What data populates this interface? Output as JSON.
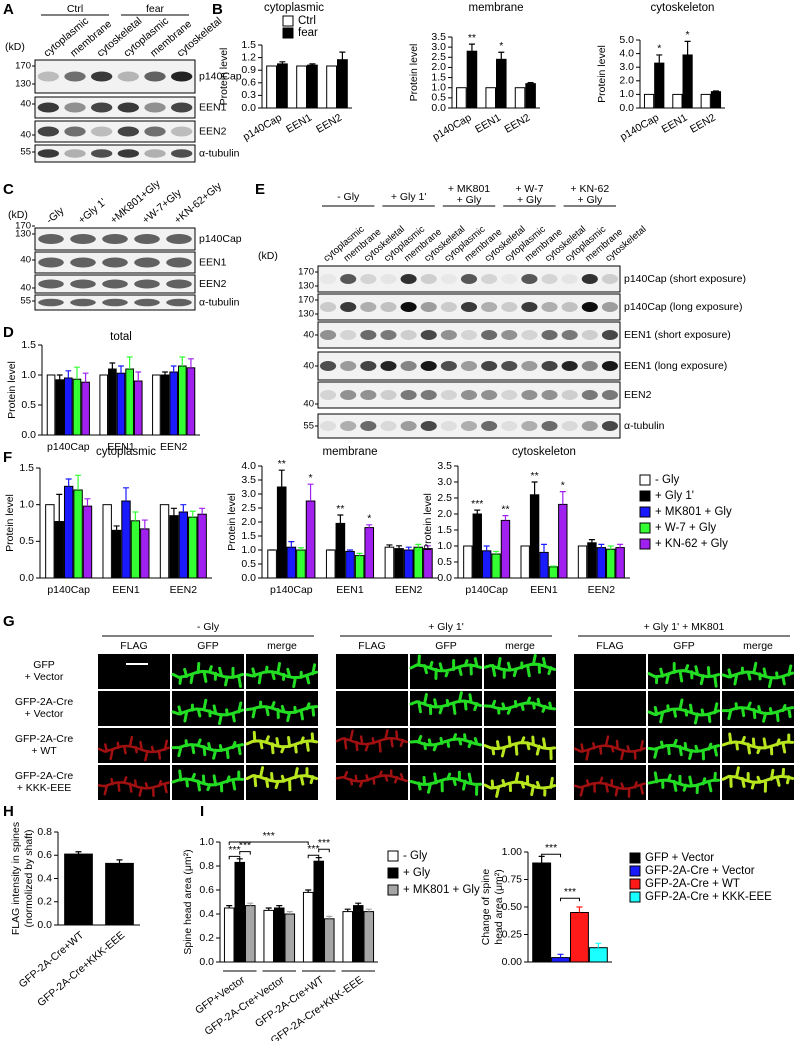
{
  "panel_labels": [
    "A",
    "B",
    "C",
    "D",
    "E",
    "F",
    "G",
    "H",
    "I"
  ],
  "blots": [
    {
      "unit": "(kD)",
      "groups": [
        "Ctrl",
        "fear"
      ],
      "lanes": [
        "cytoplasmic",
        "membrane",
        "cytoskeletal",
        "cytoplasmic",
        "membrane",
        "cytoskeletal"
      ],
      "markers": [
        "170",
        "130",
        "40",
        "40",
        "55"
      ],
      "rows": [
        "p140Cap",
        "EEN1",
        "EEN2",
        "α-tubulin"
      ]
    },
    {
      "unit": "(kD)",
      "lanes": [
        "-Gly",
        "+Gly 1'",
        "+MK801+Gly",
        "+W-7+Gly",
        "+KN-62+Gly"
      ],
      "markers": [
        "170",
        "130",
        "40",
        "40",
        "55"
      ],
      "rows": [
        "p140Cap",
        "EEN1",
        "EEN2",
        "α-tubulin"
      ]
    },
    {
      "unit": "(kD)",
      "groups": [
        [
          "- Gly"
        ],
        [
          "+ Gly 1'"
        ],
        [
          "+ MK801",
          "+ Gly"
        ],
        [
          "+ W-7",
          "+ Gly"
        ],
        [
          "+ KN-62",
          "+ Gly"
        ]
      ],
      "lanes": [
        "cytoplasmic",
        "membrane",
        "cytoskeletal",
        "cytoplasmic",
        "membrane",
        "cytoskeletal",
        "cytoplasmic",
        "membrane",
        "cytoskeletal",
        "cytoplasmic",
        "membrane",
        "cytoskeletal",
        "cytoplasmic",
        "membrane",
        "cytoskeletal"
      ],
      "markers": [
        "170",
        "130",
        "170",
        "130",
        "40",
        "40",
        "40",
        "55"
      ],
      "rows": [
        "p140Cap (short exposure)",
        "p140Cap (long exposure)",
        "EEN1 (short exposure)",
        "EEN1 (long exposure)",
        "EEN2",
        "α-tubulin"
      ]
    }
  ],
  "images": {
    "groups": [
      "- Gly",
      "+ Gly 1'",
      "+ Gly 1' + MK801"
    ],
    "columns": [
      "FLAG",
      "GFP",
      "merge",
      "FLAG",
      "GFP",
      "merge",
      "FLAG",
      "GFP",
      "merge"
    ],
    "rows": [
      [
        "GFP",
        "+ Vector"
      ],
      [
        "GFP-2A-Cre",
        "+ Vector"
      ],
      [
        "GFP-2A-Cre",
        "+ WT"
      ],
      [
        "GFP-2A-Cre",
        "+ KKK-EEE"
      ]
    ]
  },
  "chart_data": [
    {
      "type": "bar",
      "title": "cytoplasmic",
      "ylabel": "Protein level",
      "categories": [
        "p140Cap",
        "EEN1",
        "EEN2"
      ],
      "series": [
        {
          "name": "Ctrl",
          "color": "#ffffff",
          "values": [
            1,
            1,
            1
          ]
        },
        {
          "name": "fear",
          "color": "#000000",
          "values": [
            1.05,
            1.02,
            1.15
          ],
          "errors": [
            0.05,
            0.03,
            0.18
          ]
        }
      ],
      "ylim": [
        0,
        1.5
      ],
      "yticks": [
        {
          "value": 0,
          "label": "0.0"
        },
        0.3,
        0.6,
        0.9,
        1.2,
        1.5
      ]
    },
    {
      "type": "bar",
      "title": "membrane",
      "ylabel": "Protein level",
      "categories": [
        "p140Cap",
        "EEN1",
        "EEN2"
      ],
      "series": [
        {
          "color": "#ffffff",
          "values": [
            1,
            1,
            1
          ]
        },
        {
          "color": "#000000",
          "values": [
            2.8,
            2.4,
            1.2
          ],
          "errors": [
            0.35,
            0.35,
            0.05
          ]
        }
      ],
      "ylim": [
        0,
        3.5
      ],
      "yticks": [
        {
          "value": 0,
          "label": "0.0"
        },
        0.5,
        {
          "value": 1,
          "label": "1.0"
        },
        1.5,
        {
          "value": 2,
          "label": "2.0"
        },
        2.5,
        {
          "value": 3,
          "label": "3.0"
        },
        3.5
      ],
      "annotations": [
        "**",
        "*"
      ]
    },
    {
      "type": "bar",
      "title": "cytoskeleton",
      "ylabel": "Protein level",
      "categories": [
        "p140Cap",
        "EEN1",
        "EEN2"
      ],
      "series": [
        {
          "color": "#ffffff",
          "values": [
            1,
            1,
            1
          ]
        },
        {
          "color": "#000000",
          "values": [
            3.3,
            3.9,
            1.2
          ],
          "errors": [
            0.6,
            1.0,
            0.05
          ]
        }
      ],
      "ylim": [
        0,
        5
      ],
      "yticks": [
        {
          "value": 0,
          "label": "0.0"
        },
        {
          "value": 1,
          "label": "1.0"
        },
        {
          "value": 2,
          "label": "2.0"
        },
        {
          "value": 3,
          "label": "3.0"
        },
        {
          "value": 4,
          "label": "4.0"
        },
        {
          "value": 5,
          "label": "5.0"
        }
      ],
      "annotations": [
        "*",
        "*"
      ]
    },
    {
      "type": "bar",
      "title": "total",
      "ylabel": "Protein level",
      "categories": [
        "p140Cap",
        "EEN1",
        "EEN2"
      ],
      "series": [
        {
          "color": "#ffffff",
          "values": [
            1,
            1,
            1
          ]
        },
        {
          "color": "#000000",
          "values": [
            0.92,
            1.1,
            1.0
          ],
          "errors": [
            0.08,
            0.1,
            0.05
          ]
        },
        {
          "color": "#1a1aff",
          "values": [
            0.95,
            1.03,
            1.05
          ],
          "errors": [
            0.12,
            0.12,
            0.1
          ]
        },
        {
          "color": "#33ff33",
          "values": [
            0.93,
            1.1,
            1.15
          ],
          "errors": [
            0.2,
            0.2,
            0.15
          ]
        },
        {
          "color": "#a020f0",
          "values": [
            0.88,
            0.9,
            1.12
          ],
          "errors": [
            0.15,
            0.15,
            0.15
          ]
        }
      ],
      "ylim": [
        0,
        1.5
      ],
      "yticks": [
        {
          "value": 0,
          "label": "0.0"
        },
        0.5,
        {
          "value": 1,
          "label": "1.0"
        },
        1.5
      ]
    },
    {
      "type": "bar",
      "title": "cytoplasmic",
      "ylabel": "Protein level",
      "categories": [
        "p140Cap",
        "EEN1",
        "EEN2"
      ],
      "series": [
        {
          "color": "#ffffff",
          "values": [
            1,
            1,
            1
          ]
        },
        {
          "color": "#000000",
          "values": [
            0.77,
            0.65,
            0.85
          ],
          "errors": [
            0.37,
            0.06,
            0.1
          ]
        },
        {
          "color": "#1a1aff",
          "values": [
            1.25,
            1.05,
            0.9
          ],
          "errors": [
            0.1,
            0.18,
            0.1
          ]
        },
        {
          "color": "#33ff33",
          "values": [
            1.2,
            0.78,
            0.83
          ],
          "errors": [
            0.2,
            0.12,
            0.08
          ]
        },
        {
          "color": "#a020f0",
          "values": [
            0.98,
            0.67,
            0.87
          ],
          "errors": [
            0.1,
            0.12,
            0.08
          ]
        }
      ],
      "ylim": [
        0,
        1.5
      ],
      "yticks": [
        {
          "value": 0,
          "label": "0.0"
        },
        0.5,
        {
          "value": 1,
          "label": "1.0"
        },
        1.5
      ]
    },
    {
      "type": "bar",
      "title": "membrane",
      "ylabel": "Protein level",
      "categories": [
        "p140Cap",
        "EEN1",
        "EEN2"
      ],
      "series": [
        {
          "color": "#ffffff",
          "values": [
            1,
            1,
            1.1
          ],
          "errors": [
            0,
            0,
            0.08
          ]
        },
        {
          "color": "#000000",
          "values": [
            3.25,
            1.95,
            1.05
          ],
          "errors": [
            0.6,
            0.3,
            0.1
          ]
        },
        {
          "color": "#1a1aff",
          "values": [
            1.1,
            0.95,
            1.0
          ],
          "errors": [
            0.2,
            0.05,
            0.1
          ]
        },
        {
          "color": "#33ff33",
          "values": [
            1.0,
            0.8,
            1.1
          ],
          "errors": [
            0.08,
            0.08,
            0.1
          ]
        },
        {
          "color": "#a020f0",
          "values": [
            2.75,
            1.8,
            1.05
          ],
          "errors": [
            0.6,
            0.1,
            0.1
          ]
        }
      ],
      "ylim": [
        0,
        4
      ],
      "yticks": [
        {
          "value": 0,
          "label": "0.0"
        },
        0.5,
        {
          "value": 1,
          "label": "1.0"
        },
        1.5,
        {
          "value": 2,
          "label": "2.0"
        },
        2.5,
        {
          "value": 3,
          "label": "3.0"
        },
        3.5,
        {
          "value": 4,
          "label": "4.0"
        }
      ],
      "annotations": [
        "**",
        "*",
        "**",
        "*"
      ]
    },
    {
      "type": "bar",
      "title": "cytoskeleton",
      "ylabel": "Protein level",
      "categories": [
        "p140Cap",
        "EEN1",
        "EEN2"
      ],
      "series": [
        {
          "name": "- Gly",
          "color": "#ffffff",
          "values": [
            1,
            1,
            1
          ]
        },
        {
          "name": "+ Gly 1'",
          "color": "#000000",
          "values": [
            2.0,
            2.6,
            1.1
          ],
          "errors": [
            0.12,
            0.4,
            0.1
          ]
        },
        {
          "name": "+ MK801 + Gly",
          "color": "#1a1aff",
          "values": [
            0.85,
            0.8,
            0.95
          ],
          "errors": [
            0.15,
            0.25,
            0.1
          ]
        },
        {
          "name": "+ W-7 + Gly",
          "color": "#33ff33",
          "values": [
            0.75,
            0.35,
            0.9
          ],
          "errors": [
            0.08,
            0.02,
            0.1
          ]
        },
        {
          "name": "+ KN-62 + Gly",
          "color": "#a020f0",
          "values": [
            1.8,
            2.3,
            0.95
          ],
          "errors": [
            0.15,
            0.4,
            0.1
          ]
        }
      ],
      "ylim": [
        0,
        3.5
      ],
      "yticks": [
        {
          "value": 0,
          "label": "0.0"
        },
        0.5,
        {
          "value": 1,
          "label": "1.0"
        },
        1.5,
        {
          "value": 2,
          "label": "2.0"
        },
        2.5,
        {
          "value": 3,
          "label": "3.0"
        },
        3.5
      ],
      "annotations": [
        "***",
        "**",
        "**",
        "*"
      ]
    },
    {
      "type": "bar",
      "ylabel": [
        "FLAG intensity in spines",
        "(normolized by shaft)"
      ],
      "categories": [
        "GFP-2A-Cre+WT",
        "GFP-2A-Cre+KKK-EEE"
      ],
      "series": [
        {
          "color": "#000000",
          "values": [
            0.61,
            0.53
          ],
          "errors": [
            0.02,
            0.03
          ]
        }
      ],
      "ylim": [
        0,
        0.8
      ],
      "yticks": [
        {
          "value": 0,
          "label": "0.0"
        },
        0.2,
        0.4,
        0.6,
        0.8
      ]
    },
    {
      "type": "bar",
      "ylabel": "Spine head area (μm²)",
      "categories": [
        "GFP+Vector",
        "GFP-2A-Cre+Vector",
        "GFP-2A-Cre+WT",
        "GFP-2A-Cre+KKK-EEE"
      ],
      "series": [
        {
          "name": "- Gly",
          "color": "#ffffff",
          "values": [
            0.45,
            0.43,
            0.58,
            0.42
          ],
          "errors": [
            0.02,
            0.02,
            0.02,
            0.02
          ]
        },
        {
          "name": "+ Gly",
          "color": "#000000",
          "values": [
            0.83,
            0.45,
            0.84,
            0.47
          ],
          "errors": [
            0.03,
            0.02,
            0.03,
            0.02
          ]
        },
        {
          "name": "+ MK801 + Gly",
          "color": "#a6a6a6",
          "values": [
            0.47,
            0.4,
            0.36,
            0.42
          ],
          "errors": [
            0.02,
            0.02,
            0.02,
            0.02
          ]
        }
      ],
      "ylim": [
        0,
        1
      ],
      "yticks": [
        {
          "value": 0,
          "label": "0.0"
        },
        0.2,
        0.4,
        0.6,
        0.8,
        {
          "value": 1,
          "label": "1.0"
        }
      ],
      "annotations": [
        "***",
        "***",
        "***",
        "***",
        "***"
      ]
    },
    {
      "type": "bar",
      "ylabel": [
        "Change of spine",
        "head area (μm²)"
      ],
      "categories": [
        null
      ],
      "series": [
        {
          "name": "GFP + Vector",
          "color": "#000000",
          "values": [
            0.9
          ],
          "errors": [
            0.06
          ]
        },
        {
          "name": "GFP-2A-Cre + Vector",
          "color": "#1a1aff",
          "values": [
            0.04
          ],
          "errors": [
            0.03
          ]
        },
        {
          "name": "GFP-2A-Cre + WT",
          "color": "#ff1a1a",
          "values": [
            0.45
          ],
          "errors": [
            0.05
          ]
        },
        {
          "name": "GFP-2A-Cre + KKK-EEE",
          "color": "#1affff",
          "values": [
            0.13
          ],
          "errors": [
            0.04
          ]
        }
      ],
      "ylim": [
        0,
        1
      ],
      "yticks": [
        {
          "value": 0,
          "label": "0.00"
        },
        0.25,
        {
          "value": 0.5,
          "label": "0.50"
        },
        0.75,
        {
          "value": 1,
          "label": "1.00"
        }
      ],
      "annotations": [
        "***",
        "***"
      ]
    }
  ]
}
